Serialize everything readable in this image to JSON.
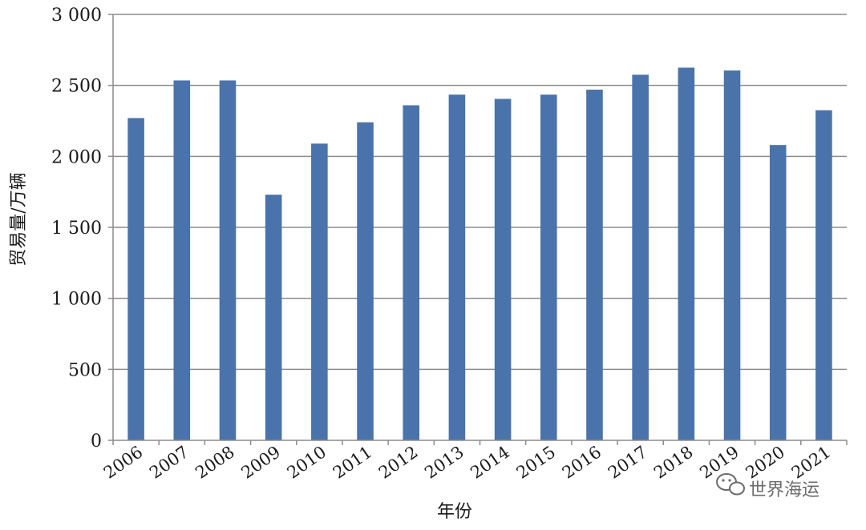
{
  "chart_data": {
    "type": "bar",
    "title": "",
    "xlabel": "年份",
    "ylabel": "贸易量/万辆",
    "categories": [
      "2006",
      "2007",
      "2008",
      "2009",
      "2010",
      "2011",
      "2012",
      "2013",
      "2014",
      "2015",
      "2016",
      "2017",
      "2018",
      "2019",
      "2020",
      "2021"
    ],
    "values": [
      2270,
      2535,
      2535,
      1730,
      2090,
      2240,
      2360,
      2435,
      2405,
      2435,
      2470,
      2575,
      2625,
      2605,
      2080,
      2325
    ],
    "ylim": [
      0,
      3000
    ],
    "yticks": [
      0,
      500,
      1000,
      1500,
      2000,
      2500,
      3000
    ],
    "ytick_labels": [
      "0",
      "500",
      "1 000",
      "1 500",
      "2 000",
      "2 500",
      "3 000"
    ],
    "grid": true,
    "legend": "none",
    "bar_color": "#4a73ab",
    "grid_color": "#8c8c8c",
    "axis_color": "#8c8c8c"
  },
  "watermark": {
    "text": "世界海运",
    "icon": "wechat-icon"
  }
}
